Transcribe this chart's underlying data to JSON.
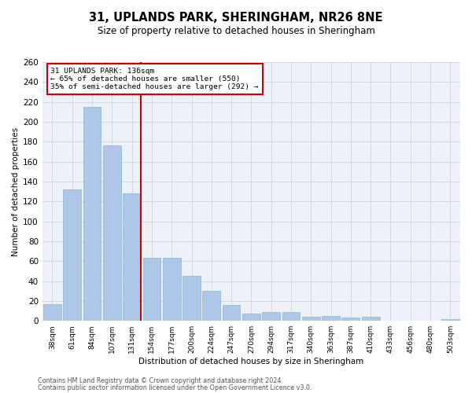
{
  "title": "31, UPLANDS PARK, SHERINGHAM, NR26 8NE",
  "subtitle": "Size of property relative to detached houses in Sheringham",
  "xlabel": "Distribution of detached houses by size in Sheringham",
  "ylabel": "Number of detached properties",
  "categories": [
    "38sqm",
    "61sqm",
    "84sqm",
    "107sqm",
    "131sqm",
    "154sqm",
    "177sqm",
    "200sqm",
    "224sqm",
    "247sqm",
    "270sqm",
    "294sqm",
    "317sqm",
    "340sqm",
    "363sqm",
    "387sqm",
    "410sqm",
    "433sqm",
    "456sqm",
    "480sqm",
    "503sqm"
  ],
  "values": [
    17,
    132,
    215,
    176,
    128,
    63,
    63,
    45,
    30,
    16,
    7,
    9,
    9,
    4,
    5,
    3,
    4,
    0,
    0,
    0,
    2
  ],
  "bar_color": "#aec6e8",
  "bar_edge_color": "#8ab4d8",
  "vline_x_index": 4,
  "vline_color": "#cc0000",
  "annotation_title": "31 UPLANDS PARK: 136sqm",
  "annotation_line1": "← 65% of detached houses are smaller (550)",
  "annotation_line2": "35% of semi-detached houses are larger (292) →",
  "annotation_box_color": "#cc0000",
  "ylim": [
    0,
    260
  ],
  "yticks": [
    0,
    20,
    40,
    60,
    80,
    100,
    120,
    140,
    160,
    180,
    200,
    220,
    240,
    260
  ],
  "footnote1": "Contains HM Land Registry data © Crown copyright and database right 2024.",
  "footnote2": "Contains public sector information licensed under the Open Government Licence v3.0.",
  "grid_color": "#ccd9e8",
  "background_color": "#eef2f8"
}
